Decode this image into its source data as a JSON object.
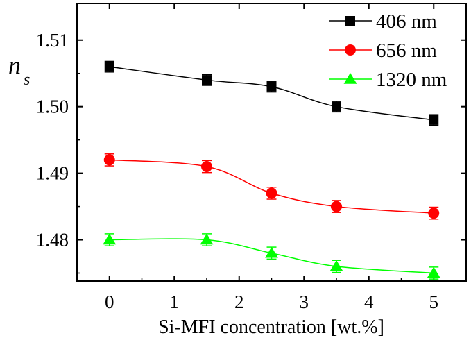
{
  "chart_data": {
    "type": "scatter",
    "xlabel": "Si-MFI concentration [wt.%]",
    "ylabel_main": "n",
    "ylabel_sub": "s",
    "xlim": [
      -0.5,
      5.5
    ],
    "ylim": [
      1.4738,
      1.5155
    ],
    "x_ticks": [
      0,
      1,
      2,
      3,
      4,
      5
    ],
    "y_ticks": [
      1.48,
      1.49,
      1.5,
      1.51
    ],
    "y_tick_labels": [
      "1.48",
      "1.49",
      "1.50",
      "1.51"
    ],
    "legend_position": "top-right",
    "x": [
      0,
      1.5,
      2.5,
      3.5,
      5
    ],
    "series": [
      {
        "name": "406 nm",
        "color": "#000000",
        "marker": "square",
        "values": [
          1.506,
          1.504,
          1.503,
          1.5,
          1.498
        ],
        "error": [
          0.0008,
          0.0008,
          0.0008,
          0.0008,
          0.0008
        ]
      },
      {
        "name": "656 nm",
        "color": "#ff0000",
        "marker": "circle",
        "values": [
          1.492,
          1.491,
          1.487,
          1.485,
          1.484
        ],
        "error": [
          0.0009,
          0.0009,
          0.0009,
          0.0009,
          0.0009
        ]
      },
      {
        "name": "1320 nm",
        "color": "#00ff00",
        "marker": "triangle",
        "values": [
          1.48,
          1.48,
          1.478,
          1.476,
          1.475
        ],
        "error": [
          0.0009,
          0.0009,
          0.0009,
          0.0009,
          0.0009
        ]
      }
    ]
  }
}
